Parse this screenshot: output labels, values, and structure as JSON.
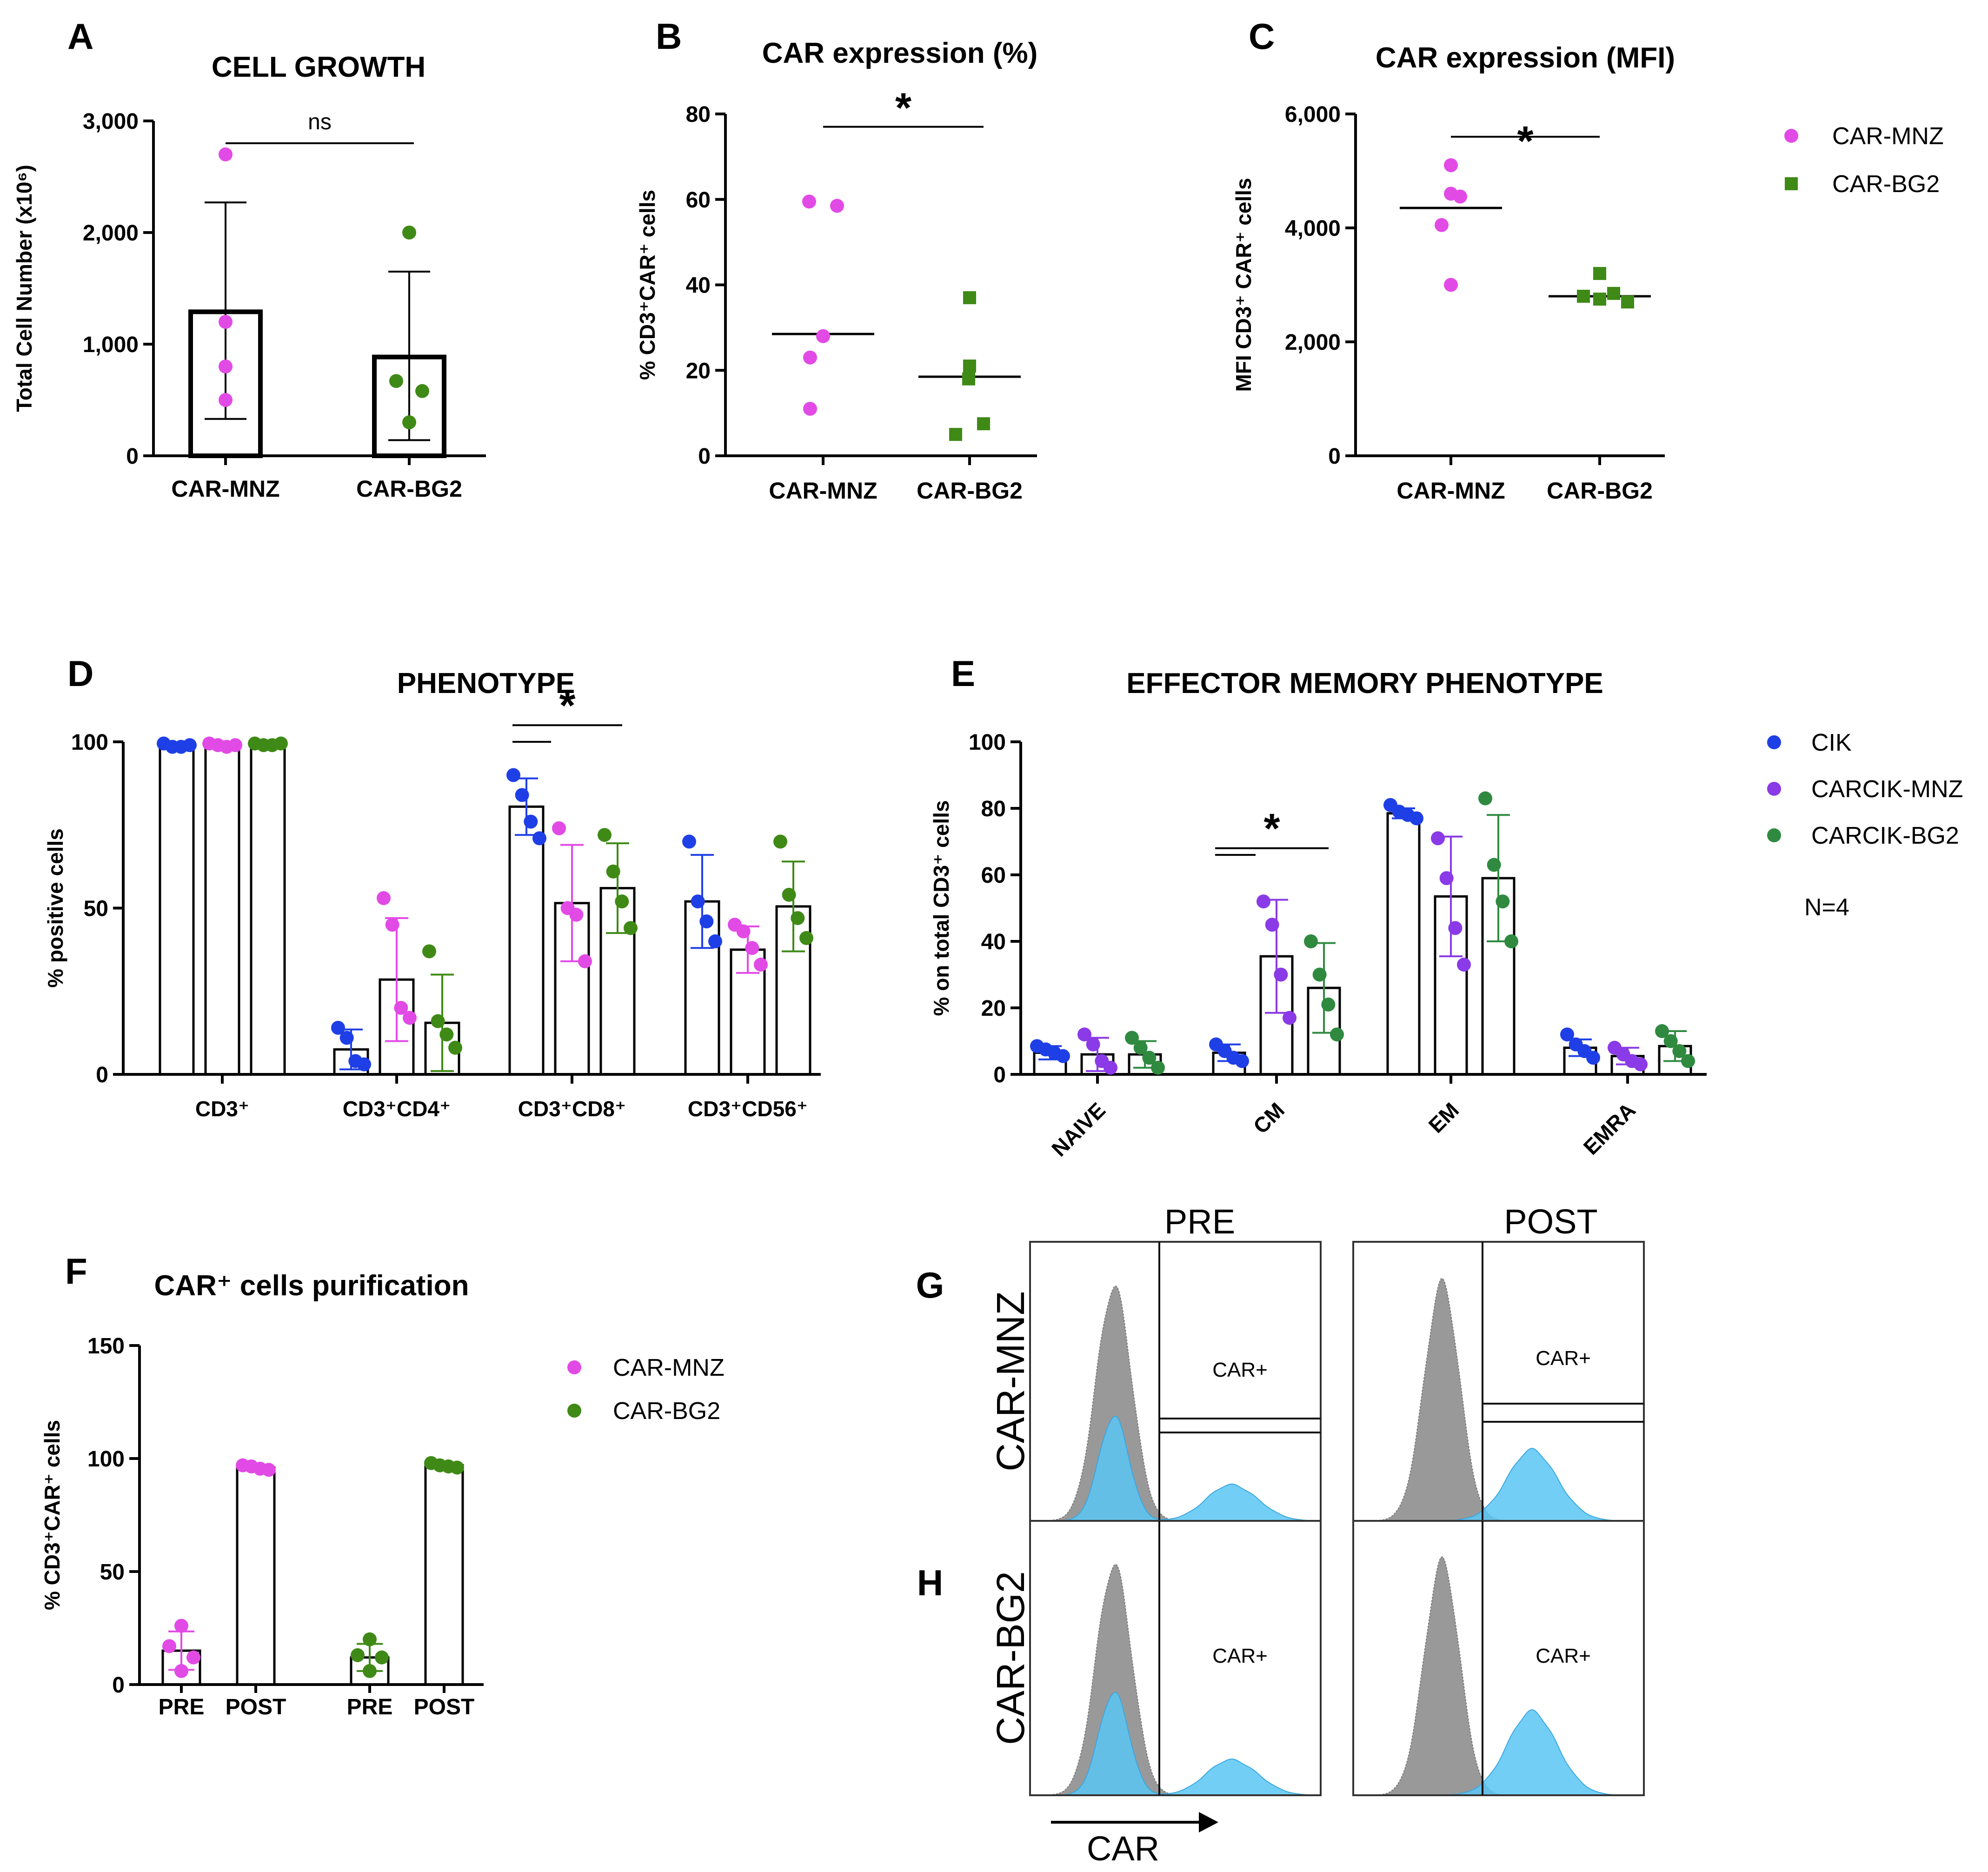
{
  "colors": {
    "magenta": "#e24ae6",
    "green": "#3f8a16",
    "blue": "#1f3fe6",
    "purple": "#8a3ae6",
    "dkgreen": "#2f8a40",
    "hist_gray": "#999999",
    "hist_blue": "#5bc6f5"
  },
  "chart_data": [
    {
      "id": "A",
      "type": "bar",
      "letter": "A",
      "title": "CELL GROWTH",
      "ylabel": "Total Cell Number (x10⁶)",
      "ylim": [
        0,
        3000
      ],
      "yticks": [
        0,
        1000,
        2000,
        3000
      ],
      "ytick_labels": [
        "0",
        "1,000",
        "2,000",
        "3,000"
      ],
      "categories": [
        "CAR-MNZ",
        "CAR-BG2"
      ],
      "means": [
        1290,
        885
      ],
      "sd_upper": [
        2270,
        1650
      ],
      "sd_lower": [
        330,
        140
      ],
      "points": [
        [
          2700,
          1200,
          800,
          500
        ],
        [
          2000,
          670,
          580,
          300
        ]
      ],
      "significance": [
        {
          "from": 0,
          "to": 1,
          "label": "ns",
          "y": 2800
        }
      ]
    },
    {
      "id": "B",
      "type": "scatter",
      "letter": "B",
      "title": "CAR expression (%)",
      "ylabel": "% CD3⁺CAR⁺ cells",
      "ylim": [
        0,
        80
      ],
      "yticks": [
        0,
        20,
        40,
        60,
        80
      ],
      "ytick_labels": [
        "0",
        "20",
        "40",
        "60",
        "80"
      ],
      "categories": [
        "CAR-MNZ",
        "CAR-BG2"
      ],
      "medians": [
        28.5,
        18.5
      ],
      "points": [
        [
          59.5,
          58.5,
          28,
          23,
          11
        ],
        [
          37,
          21,
          18,
          7.5,
          5
        ]
      ],
      "significance": [
        {
          "from": 0,
          "to": 1,
          "label": "*",
          "y": 77
        }
      ]
    },
    {
      "id": "C",
      "type": "scatter",
      "letter": "C",
      "title": "CAR expression (MFI)",
      "ylabel": "MFI CD3⁺ CAR⁺ cells",
      "ylim": [
        0,
        6000
      ],
      "yticks": [
        0,
        2000,
        4000,
        6000
      ],
      "ytick_labels": [
        "0",
        "2,000",
        "4,000",
        "6,000"
      ],
      "categories": [
        "CAR-MNZ",
        "CAR-BG2"
      ],
      "medians": [
        4350,
        2800
      ],
      "points": [
        [
          5100,
          4600,
          4550,
          4050,
          3000
        ],
        [
          3200,
          2850,
          2800,
          2750,
          2700
        ]
      ],
      "significance": [
        {
          "from": 0,
          "to": 1,
          "label": "*",
          "y": 5600
        }
      ],
      "legend": [
        {
          "label": "CAR-MNZ",
          "color": "#e24ae6",
          "shape": "circle"
        },
        {
          "label": "CAR-BG2",
          "color": "#3f8a16",
          "shape": "square"
        }
      ]
    },
    {
      "id": "D",
      "type": "bar",
      "letter": "D",
      "title": "PHENOTYPE",
      "ylabel": "% positive cells",
      "ylim": [
        0,
        100
      ],
      "yticks": [
        0,
        50,
        100
      ],
      "ytick_labels": [
        "0",
        "50",
        "100"
      ],
      "categories": [
        "CD3⁺",
        "CD3⁺CD4⁺",
        "CD3⁺CD8⁺",
        "CD3⁺CD56⁺"
      ],
      "series": [
        {
          "name": "CIK",
          "color": "#1f3fe6",
          "means": [
            98.5,
            7.5,
            80.5,
            52
          ],
          "sd": [
            0.6,
            6,
            8.5,
            14
          ],
          "points": [
            [
              99.5,
              98.5,
              98.5,
              99
            ],
            [
              14,
              11,
              4,
              3
            ],
            [
              90,
              84,
              76,
              71
            ],
            [
              70,
              52,
              46,
              40
            ]
          ]
        },
        {
          "name": "CARCIK-MNZ",
          "color": "#e24ae6",
          "means": [
            98.7,
            28.5,
            51.5,
            37.5
          ],
          "sd": [
            0.7,
            18.5,
            17.5,
            7
          ],
          "points": [
            [
              99.5,
              99,
              98.5,
              99
            ],
            [
              53,
              45,
              20,
              17
            ],
            [
              74,
              50,
              48,
              34
            ],
            [
              45,
              43,
              38,
              33
            ]
          ]
        },
        {
          "name": "CARCIK-BG2",
          "color": "#3f8a16",
          "means": [
            99,
            15.5,
            56,
            50.5
          ],
          "sd": [
            0.5,
            14.5,
            13.5,
            13.5
          ],
          "points": [
            [
              99.5,
              99,
              99,
              99.5
            ],
            [
              37,
              16,
              12,
              8
            ],
            [
              72,
              61,
              52,
              44
            ],
            [
              70,
              54,
              47,
              41
            ]
          ]
        }
      ],
      "significance": [
        {
          "category": 2,
          "from_series": 0,
          "to_series": 1,
          "label": "",
          "y": 100
        },
        {
          "category": 2,
          "from_series": 0,
          "to_series": 2,
          "label": "*",
          "y": 105
        }
      ]
    },
    {
      "id": "E",
      "type": "bar",
      "letter": "E",
      "title": "EFFECTOR MEMORY PHENOTYPE",
      "ylabel": "% on total CD3⁺ cells",
      "ylim": [
        0,
        100
      ],
      "yticks": [
        0,
        20,
        40,
        60,
        80,
        100
      ],
      "ytick_labels": [
        "0",
        "20",
        "40",
        "60",
        "80",
        "100"
      ],
      "categories": [
        "NAIVE",
        "CM",
        "EM",
        "EMRA"
      ],
      "series": [
        {
          "name": "CIK",
          "color": "#1f3fe6",
          "means": [
            6.5,
            6.5,
            78.5,
            8
          ],
          "sd": [
            2,
            2.5,
            1.5,
            2.5
          ],
          "points": [
            [
              8.5,
              7.5,
              6.5,
              5.5
            ],
            [
              9,
              7,
              5,
              4
            ],
            [
              81,
              79,
              78,
              77
            ],
            [
              12,
              9,
              7,
              5
            ]
          ]
        },
        {
          "name": "CARCIK-MNZ",
          "color": "#8a3ae6",
          "means": [
            6,
            35.5,
            53.5,
            5.5
          ],
          "sd": [
            5,
            17,
            18,
            2.5
          ],
          "points": [
            [
              12,
              9,
              4,
              2
            ],
            [
              52,
              45,
              30,
              17
            ],
            [
              71,
              59,
              44,
              33
            ],
            [
              8,
              6,
              4,
              3
            ]
          ]
        },
        {
          "name": "CARCIK-BG2",
          "color": "#2f8a40",
          "means": [
            6,
            26,
            59,
            8.5
          ],
          "sd": [
            4,
            13.5,
            19,
            4.5
          ],
          "points": [
            [
              11,
              8,
              5,
              2
            ],
            [
              40,
              30,
              21,
              12
            ],
            [
              83,
              63,
              52,
              40
            ],
            [
              13,
              10,
              7,
              4
            ]
          ]
        }
      ],
      "significance": [
        {
          "category": 1,
          "from_series": 0,
          "to_series": 1,
          "label": "",
          "y": 66
        },
        {
          "category": 1,
          "from_series": 0,
          "to_series": 2,
          "label": "*",
          "y": 68
        }
      ],
      "legend": [
        {
          "label": "CIK",
          "color": "#1f3fe6"
        },
        {
          "label": "CARCIK-MNZ",
          "color": "#8a3ae6"
        },
        {
          "label": "CARCIK-BG2",
          "color": "#2f8a40"
        }
      ],
      "annotation": "N=4"
    },
    {
      "id": "F",
      "type": "bar",
      "letter": "F",
      "title": "CAR⁺ cells purification",
      "ylabel": "% CD3⁺CAR⁺ cells",
      "ylim": [
        0,
        150
      ],
      "yticks": [
        0,
        50,
        100,
        150
      ],
      "ytick_labels": [
        "0",
        "50",
        "100",
        "150"
      ],
      "categories": [
        "PRE",
        "POST",
        "PRE",
        "POST"
      ],
      "bar_colors": [
        "#e24ae6",
        "#e24ae6",
        "#3f8a16",
        "#3f8a16"
      ],
      "means": [
        15,
        96,
        12,
        97
      ],
      "sd": [
        8.5,
        1.2,
        6,
        1
      ],
      "points": [
        [
          26,
          17,
          12,
          6
        ],
        [
          97,
          96.5,
          95.5,
          95
        ],
        [
          20,
          13,
          12,
          6
        ],
        [
          98,
          97,
          96.5,
          96
        ]
      ],
      "legend": [
        {
          "label": "CAR-MNZ",
          "color": "#e24ae6"
        },
        {
          "label": "CAR-BG2",
          "color": "#3f8a16"
        }
      ]
    }
  ],
  "flow": {
    "col_labels": [
      "PRE",
      "POST"
    ],
    "rows": [
      {
        "letter": "G",
        "label": "CAR-MNZ"
      },
      {
        "letter": "H",
        "label": "CAR-BG2"
      }
    ],
    "gate_label": "CAR+",
    "axis_label": "CAR"
  }
}
